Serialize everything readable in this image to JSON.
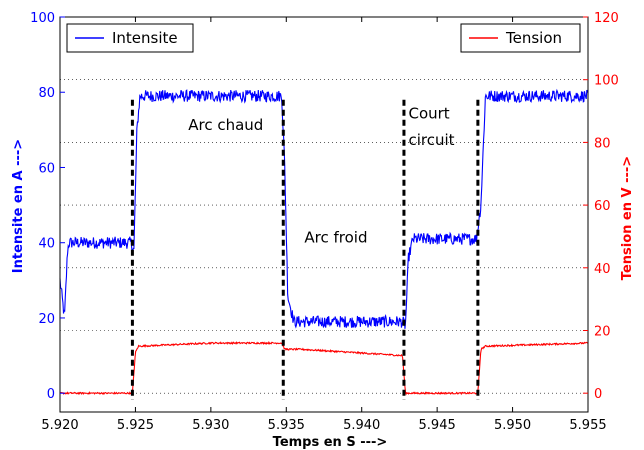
{
  "chart_data": {
    "type": "line",
    "xlabel": "Temps en S --->",
    "ylabel_left": "Intensite en A --->",
    "ylabel_right": "Tension en V --->",
    "xlim": [
      5.92,
      5.955
    ],
    "ylim_left": [
      -5,
      100
    ],
    "ylim_right": [
      -6,
      120
    ],
    "x_ticks": [
      "5.920",
      "5.925",
      "5.930",
      "5.935",
      "5.940",
      "5.945",
      "5.950",
      "5.955"
    ],
    "y_ticks_left": [
      "0",
      "20",
      "40",
      "60",
      "80",
      "100"
    ],
    "y_ticks_right": [
      "0",
      "20",
      "40",
      "60",
      "80",
      "100",
      "120"
    ],
    "grid": "horizontal dotted (right axis ticks)",
    "colors": {
      "intensite": "#0000ff",
      "tension": "#ff0000",
      "left_axis": "#0000ff",
      "right_axis": "#ff0000",
      "markers": "#000000"
    },
    "series": [
      {
        "name": "Intensite",
        "axis": "left",
        "color": "#0000ff",
        "noise": 1.6,
        "points": [
          [
            5.92,
            30
          ],
          [
            5.9203,
            20
          ],
          [
            5.9205,
            38
          ],
          [
            5.9206,
            40
          ],
          [
            5.9247,
            40
          ],
          [
            5.9249,
            38
          ],
          [
            5.9251,
            70
          ],
          [
            5.9253,
            79
          ],
          [
            5.9347,
            79
          ],
          [
            5.9349,
            60
          ],
          [
            5.9351,
            26
          ],
          [
            5.9355,
            19
          ],
          [
            5.9427,
            19
          ],
          [
            5.9429,
            18
          ],
          [
            5.9431,
            36
          ],
          [
            5.9434,
            41
          ],
          [
            5.9476,
            41
          ],
          [
            5.9479,
            50
          ],
          [
            5.9482,
            79
          ],
          [
            5.955,
            79
          ]
        ]
      },
      {
        "name": "Tension",
        "axis": "right",
        "color": "#ff0000",
        "noise": 0.25,
        "points": [
          [
            5.92,
            0
          ],
          [
            5.9248,
            0
          ],
          [
            5.925,
            13
          ],
          [
            5.9252,
            15
          ],
          [
            5.93,
            16
          ],
          [
            5.9347,
            16
          ],
          [
            5.9349,
            14
          ],
          [
            5.936,
            14
          ],
          [
            5.9427,
            12
          ],
          [
            5.9429,
            0
          ],
          [
            5.9477,
            0
          ],
          [
            5.9479,
            14
          ],
          [
            5.9482,
            15
          ],
          [
            5.955,
            16
          ]
        ]
      }
    ],
    "markers": [
      5.9248,
      5.9348,
      5.9428,
      5.9477
    ],
    "marker_top_left": 78,
    "annotations": [
      {
        "text": "Arc chaud",
        "x": 5.9285,
        "y": 70
      },
      {
        "text": "Arc froid",
        "x": 5.9362,
        "y": 40
      },
      {
        "text": "Court",
        "x": 5.9431,
        "y": 73
      },
      {
        "text": "circuit",
        "x": 5.9431,
        "y": 66
      }
    ],
    "legend": [
      {
        "label": "Intensite",
        "color": "#0000ff",
        "placement": "top-left"
      },
      {
        "label": "Tension",
        "color": "#ff0000",
        "placement": "top-right"
      }
    ]
  }
}
